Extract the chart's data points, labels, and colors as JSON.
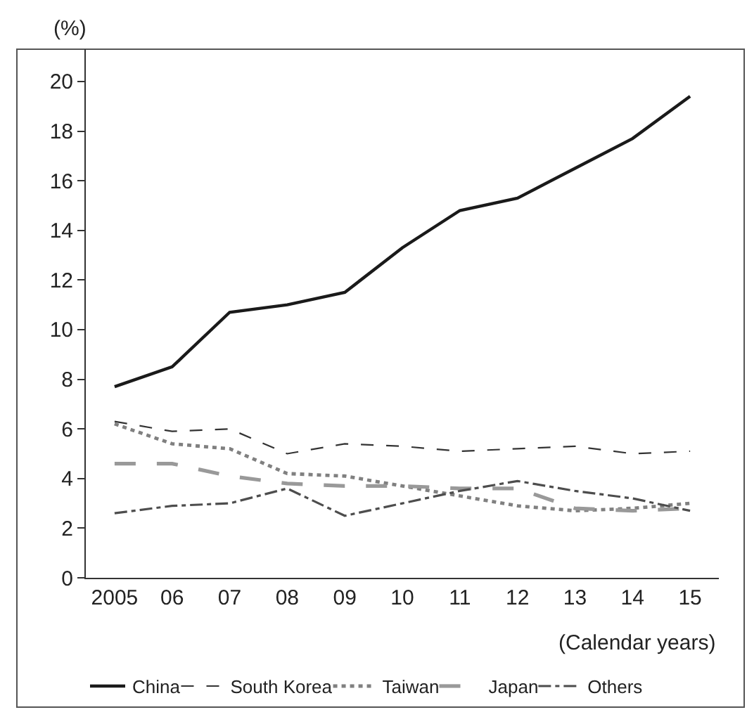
{
  "chart_data": {
    "type": "line",
    "ylabel": "(%)",
    "xlabel": "(Calendar years)",
    "categories": [
      "2005",
      "06",
      "07",
      "08",
      "09",
      "10",
      "11",
      "12",
      "13",
      "14",
      "15"
    ],
    "series": [
      {
        "name": "China",
        "color": "#1a1a1a",
        "line_style": "solid",
        "values": [
          7.7,
          8.5,
          10.7,
          11.0,
          11.5,
          13.3,
          14.8,
          15.3,
          16.5,
          17.7,
          19.4
        ]
      },
      {
        "name": "South Korea",
        "color": "#333333",
        "line_style": "dashed",
        "values": [
          6.3,
          5.9,
          6.0,
          5.0,
          5.4,
          5.3,
          5.1,
          5.2,
          5.3,
          5.0,
          5.1
        ]
      },
      {
        "name": "Taiwan",
        "color": "#808080",
        "line_style": "dotted",
        "values": [
          6.2,
          5.4,
          5.2,
          4.2,
          4.1,
          3.7,
          3.3,
          2.9,
          2.7,
          2.8,
          3.0
        ]
      },
      {
        "name": "Japan",
        "color": "#999999",
        "line_style": "longdash",
        "values": [
          4.6,
          4.6,
          4.1,
          3.8,
          3.7,
          3.7,
          3.6,
          3.6,
          2.8,
          2.7,
          2.8
        ]
      },
      {
        "name": "Others",
        "color": "#4d4d4d",
        "line_style": "dashdot",
        "values": [
          2.6,
          2.9,
          3.0,
          3.6,
          2.5,
          3.0,
          3.5,
          3.9,
          3.5,
          3.2,
          2.7
        ]
      }
    ],
    "ylim": [
      0,
      21.3
    ],
    "yticks": [
      0,
      2,
      4,
      6,
      8,
      10,
      12,
      14,
      16,
      18,
      20
    ],
    "grid": false,
    "legend": "bottom",
    "marker": "none"
  }
}
